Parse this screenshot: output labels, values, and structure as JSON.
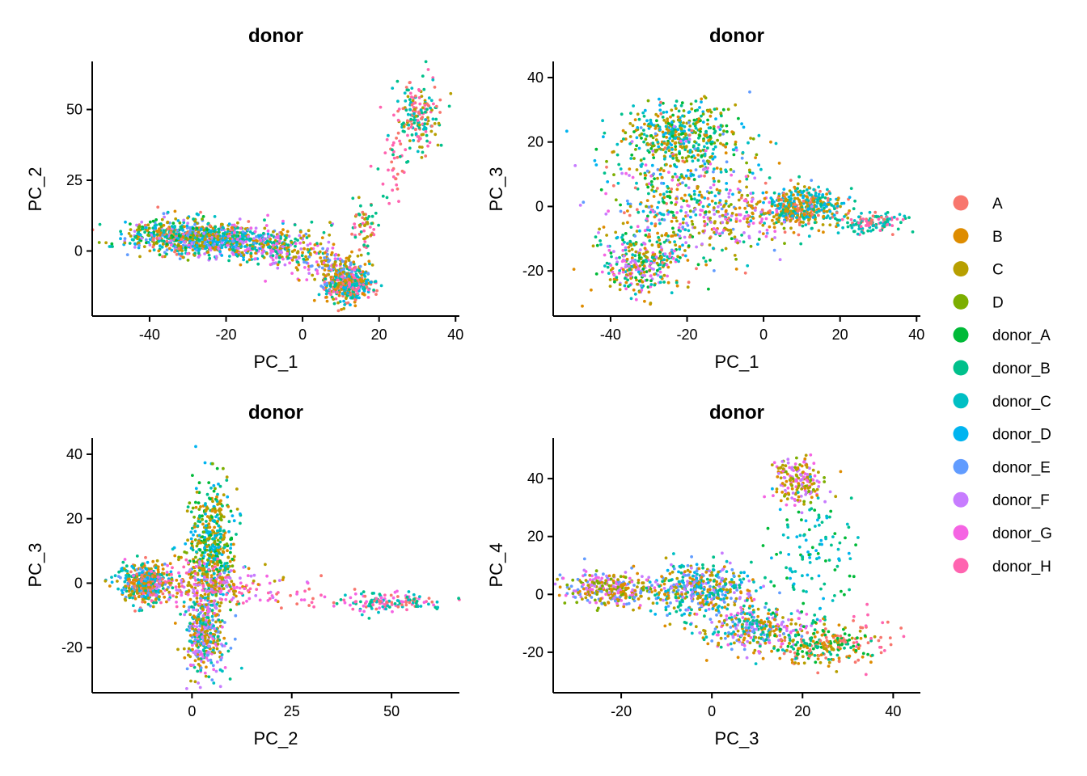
{
  "legend": {
    "entries": [
      {
        "label": "A",
        "color": "#F8766D"
      },
      {
        "label": "B",
        "color": "#DE8C00"
      },
      {
        "label": "C",
        "color": "#B79F00"
      },
      {
        "label": "D",
        "color": "#7CAE00"
      },
      {
        "label": "donor_A",
        "color": "#00BA38"
      },
      {
        "label": "donor_B",
        "color": "#00C08B"
      },
      {
        "label": "donor_C",
        "color": "#00BFC4"
      },
      {
        "label": "donor_D",
        "color": "#00B4F0"
      },
      {
        "label": "donor_E",
        "color": "#619CFF"
      },
      {
        "label": "donor_F",
        "color": "#C77CFF"
      },
      {
        "label": "donor_G",
        "color": "#F564E3"
      },
      {
        "label": "donor_H",
        "color": "#FF64B0"
      }
    ],
    "placement": "right"
  },
  "chart_data": [
    {
      "type": "scatter",
      "title": "donor",
      "xlabel": "PC_1",
      "ylabel": "PC_2",
      "xlim": [
        -55,
        41
      ],
      "ylim": [
        -23,
        67
      ],
      "xticks": [
        -40,
        -20,
        0,
        20,
        40
      ],
      "yticks": [
        0,
        25,
        50
      ],
      "xtick_labels": [
        "-40",
        "-20",
        "0",
        "20",
        "40"
      ],
      "ytick_labels": [
        "0",
        "25",
        "50"
      ],
      "grid": false,
      "clusters": [
        {
          "cx": -30,
          "cy": 5,
          "sx": 8,
          "sy": 3,
          "n": 700,
          "mix": [
            0,
            1,
            2,
            3,
            4,
            5,
            6,
            7,
            8,
            9
          ]
        },
        {
          "cx": -15,
          "cy": 3,
          "sx": 7,
          "sy": 3,
          "n": 350,
          "mix": [
            1,
            2,
            5,
            6,
            7,
            8,
            9,
            10
          ]
        },
        {
          "cx": -3,
          "cy": 0,
          "sx": 6,
          "sy": 4,
          "n": 150,
          "mix": [
            1,
            2,
            5,
            9,
            10
          ]
        },
        {
          "cx": 12,
          "cy": -12,
          "sx": 3,
          "sy": 3,
          "n": 400,
          "mix": [
            0,
            1,
            2,
            5,
            6,
            7,
            11
          ]
        },
        {
          "cx": 8,
          "cy": -5,
          "sx": 4,
          "sy": 3,
          "n": 120,
          "mix": [
            1,
            2,
            8,
            10
          ]
        },
        {
          "cx": 16,
          "cy": 8,
          "sx": 2,
          "sy": 5,
          "n": 60,
          "mix": [
            0,
            2,
            5,
            11
          ]
        },
        {
          "cx": 30,
          "cy": 48,
          "sx": 3,
          "sy": 6,
          "n": 180,
          "mix": [
            0,
            2,
            5,
            6,
            11
          ]
        },
        {
          "cx": 24,
          "cy": 28,
          "sx": 2.5,
          "sy": 6,
          "n": 40,
          "mix": [
            0,
            5,
            11
          ]
        }
      ]
    },
    {
      "type": "scatter",
      "title": "donor",
      "xlabel": "PC_1",
      "ylabel": "PC_3",
      "xlim": [
        -55,
        41
      ],
      "ylim": [
        -34,
        45
      ],
      "xticks": [
        -40,
        -20,
        0,
        20,
        40
      ],
      "yticks": [
        -20,
        0,
        20,
        40
      ],
      "xtick_labels": [
        "-40",
        "-20",
        "0",
        "20",
        "40"
      ],
      "ytick_labels": [
        "-20",
        "0",
        "20",
        "40"
      ],
      "grid": false,
      "clusters": [
        {
          "cx": -22,
          "cy": 22,
          "sx": 7,
          "sy": 5,
          "n": 400,
          "mix": [
            2,
            3,
            4,
            5,
            6,
            7,
            1
          ]
        },
        {
          "cx": -32,
          "cy": -18,
          "sx": 5,
          "sy": 5,
          "n": 300,
          "mix": [
            1,
            2,
            4,
            5,
            6,
            9,
            10
          ]
        },
        {
          "cx": -20,
          "cy": 2,
          "sx": 11,
          "sy": 11,
          "n": 500,
          "mix": [
            0,
            1,
            2,
            3,
            4,
            5,
            6,
            7,
            8,
            9,
            10
          ]
        },
        {
          "cx": 10,
          "cy": 0,
          "sx": 5,
          "sy": 3,
          "n": 450,
          "mix": [
            1,
            2,
            5,
            6,
            7,
            0
          ]
        },
        {
          "cx": 28,
          "cy": -5,
          "sx": 4,
          "sy": 1.5,
          "n": 120,
          "mix": [
            0,
            5,
            6,
            11
          ]
        },
        {
          "cx": -8,
          "cy": -4,
          "sx": 8,
          "sy": 4,
          "n": 120,
          "mix": [
            1,
            2,
            9,
            10
          ]
        }
      ]
    },
    {
      "type": "scatter",
      "title": "donor",
      "xlabel": "PC_2",
      "ylabel": "PC_3",
      "xlim": [
        -25,
        67
      ],
      "ylim": [
        -34,
        45
      ],
      "xticks": [
        0,
        25,
        50
      ],
      "yticks": [
        -20,
        0,
        20,
        40
      ],
      "xtick_labels": [
        "0",
        "25",
        "50"
      ],
      "ytick_labels": [
        "-20",
        "0",
        "20",
        "40"
      ],
      "grid": false,
      "clusters": [
        {
          "cx": -12,
          "cy": 0,
          "sx": 3,
          "sy": 3,
          "n": 450,
          "mix": [
            0,
            1,
            2,
            5,
            6,
            7,
            8
          ]
        },
        {
          "cx": 5,
          "cy": 12,
          "sx": 3,
          "sy": 10,
          "n": 500,
          "mix": [
            1,
            2,
            3,
            4,
            5,
            6,
            7
          ]
        },
        {
          "cx": 3,
          "cy": -15,
          "sx": 2.5,
          "sy": 7,
          "n": 400,
          "mix": [
            1,
            2,
            5,
            6,
            8,
            9,
            10
          ]
        },
        {
          "cx": 3,
          "cy": 0,
          "sx": 8,
          "sy": 3,
          "n": 250,
          "mix": [
            1,
            2,
            9,
            10,
            11
          ]
        },
        {
          "cx": 50,
          "cy": -6,
          "sx": 6,
          "sy": 1.5,
          "n": 140,
          "mix": [
            0,
            5,
            6,
            10,
            11
          ]
        },
        {
          "cx": 25,
          "cy": -4,
          "sx": 8,
          "sy": 2,
          "n": 30,
          "mix": [
            0,
            10,
            11
          ]
        }
      ]
    },
    {
      "type": "scatter",
      "title": "donor",
      "xlabel": "PC_3",
      "ylabel": "PC_4",
      "xlim": [
        -35,
        46
      ],
      "ylim": [
        -34,
        54
      ],
      "xticks": [
        -20,
        0,
        20,
        40
      ],
      "yticks": [
        -20,
        0,
        20,
        40
      ],
      "xtick_labels": [
        "-20",
        "0",
        "20",
        "40"
      ],
      "ytick_labels": [
        "-20",
        "0",
        "20",
        "40"
      ],
      "grid": false,
      "clusters": [
        {
          "cx": -22,
          "cy": 2,
          "sx": 5,
          "sy": 3,
          "n": 300,
          "mix": [
            1,
            2,
            3,
            8,
            9,
            10
          ]
        },
        {
          "cx": -2,
          "cy": 2,
          "sx": 6,
          "sy": 4,
          "n": 450,
          "mix": [
            1,
            2,
            5,
            6,
            7,
            8,
            9
          ]
        },
        {
          "cx": 10,
          "cy": -12,
          "sx": 6,
          "sy": 4,
          "n": 350,
          "mix": [
            1,
            2,
            5,
            6,
            8,
            9,
            10
          ]
        },
        {
          "cx": 25,
          "cy": -18,
          "sx": 5,
          "sy": 3,
          "n": 220,
          "mix": [
            1,
            2,
            4,
            5,
            0
          ]
        },
        {
          "cx": 19,
          "cy": 39,
          "sx": 3,
          "sy": 4,
          "n": 180,
          "mix": [
            1,
            2,
            3,
            9,
            10
          ]
        },
        {
          "cx": 22,
          "cy": 12,
          "sx": 5,
          "sy": 10,
          "n": 120,
          "mix": [
            4,
            5,
            6,
            7
          ]
        },
        {
          "cx": 35,
          "cy": -15,
          "sx": 4,
          "sy": 5,
          "n": 25,
          "mix": [
            0,
            11
          ]
        }
      ]
    }
  ]
}
